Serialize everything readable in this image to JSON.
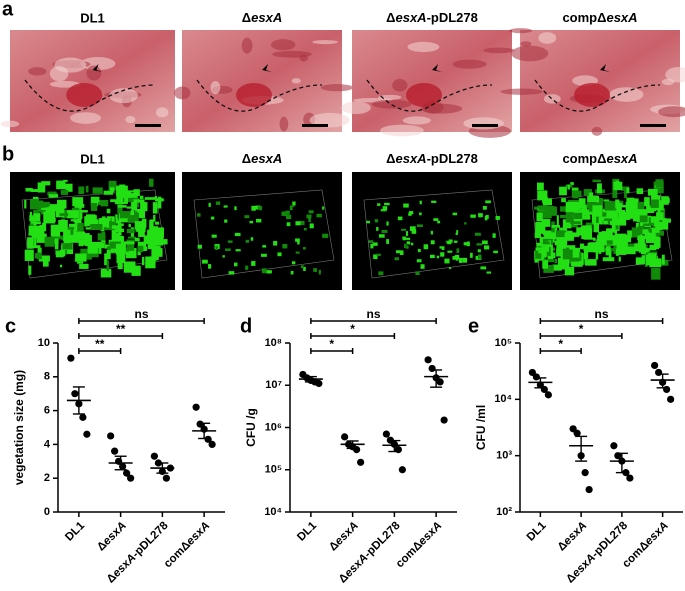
{
  "panels": {
    "a": {
      "label": "a",
      "captions": [
        "DL1",
        "ΔesxA",
        "ΔesxA-pDL278",
        "compΔesxA"
      ]
    },
    "b": {
      "label": "b",
      "captions": [
        "DL1",
        "ΔesxA",
        "ΔesxA-pDL278",
        "compΔesxA"
      ]
    }
  },
  "chart_data": [
    {
      "type": "dot",
      "panel": "c",
      "ylabel": "vegetation size (mg)",
      "categories": [
        "DL1",
        "ΔesxA",
        "ΔesxA-pDL278",
        "comΔesxA"
      ],
      "points": [
        [
          9.1,
          7.0,
          6.4,
          5.6,
          4.6
        ],
        [
          4.5,
          3.6,
          3.0,
          2.7,
          2.3,
          2.0
        ],
        [
          3.3,
          2.9,
          2.4,
          2.0,
          2.6
        ],
        [
          6.2,
          5.2,
          4.9,
          4.3,
          4.0
        ]
      ],
      "means": [
        6.6,
        2.9,
        2.6,
        4.8
      ],
      "errors": [
        0.8,
        0.4,
        0.3,
        0.45
      ],
      "ylim": [
        0,
        10
      ],
      "yticks": [
        0,
        2,
        4,
        6,
        8,
        10
      ],
      "log_scale": false,
      "color": "#000000",
      "annotations": [
        "ns",
        "**",
        "**"
      ]
    },
    {
      "type": "dot",
      "panel": "d",
      "ylabel": "CFU /g",
      "categories": [
        "DL1",
        "ΔesxA",
        "ΔesxA-pDL278",
        "comΔesxA"
      ],
      "points": [
        [
          18000000,
          15000000,
          13000000,
          12000000,
          11000000
        ],
        [
          600000,
          400000,
          350000,
          300000,
          150000
        ],
        [
          700000,
          500000,
          400000,
          300000,
          100000
        ],
        [
          40000000,
          25000000,
          15000000,
          12000000,
          1500000
        ]
      ],
      "means": [
        14000000,
        400000,
        380000,
        16000000
      ],
      "errors": [
        2000000,
        80000,
        110000,
        7000000
      ],
      "ylim": [
        10000,
        100000000
      ],
      "yticks": [
        {
          "value": 10000,
          "label": "10⁴"
        },
        {
          "value": 100000,
          "label": "10⁵"
        },
        {
          "value": 1000000,
          "label": "10⁶"
        },
        {
          "value": 10000000,
          "label": "10⁷"
        },
        {
          "value": 100000000,
          "label": "10⁸"
        }
      ],
      "log_scale": true,
      "color": "#000000",
      "annotations": [
        "ns",
        "*",
        "*"
      ]
    },
    {
      "type": "dot",
      "panel": "e",
      "ylabel": "CFU /ml",
      "categories": [
        "DL1",
        "ΔesxA",
        "ΔesxA-pDL278",
        "comΔesxA"
      ],
      "points": [
        [
          30000,
          25000,
          18000,
          15000,
          12000
        ],
        [
          3000,
          2500,
          1000,
          500,
          250
        ],
        [
          1500,
          1000,
          800,
          500,
          400
        ],
        [
          40000,
          30000,
          20000,
          15000,
          10000
        ]
      ],
      "means": [
        20000,
        1500,
        800,
        22000
      ],
      "errors": [
        4000,
        700,
        300,
        6000
      ],
      "ylim": [
        100,
        100000
      ],
      "yticks": [
        {
          "value": 100,
          "label": "10²"
        },
        {
          "value": 1000,
          "label": "10³"
        },
        {
          "value": 10000,
          "label": "10⁴"
        },
        {
          "value": 100000,
          "label": "10⁵"
        }
      ],
      "log_scale": true,
      "color": "#000000",
      "annotations": [
        "ns",
        "*",
        "*"
      ]
    }
  ]
}
